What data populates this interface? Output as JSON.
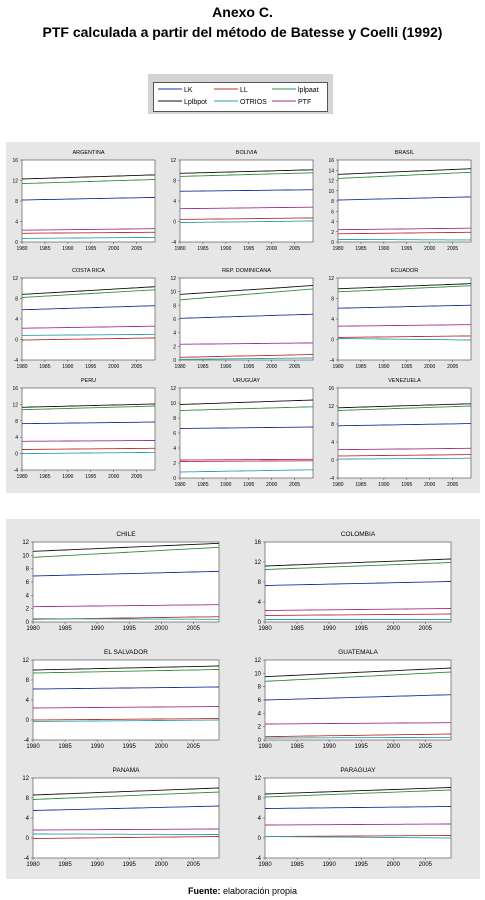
{
  "header": {
    "line1": "Anexo C.",
    "line2": "PTF calculada a partir del método de Batesse y Coelli (1992)"
  },
  "legend": {
    "items": [
      {
        "label": "LK",
        "color": "#1d2f9c"
      },
      {
        "label": "LL",
        "color": "#c23028"
      },
      {
        "label": "lplpaat",
        "color": "#2f8f3a"
      },
      {
        "label": "Lplbpot",
        "color": "#111111"
      },
      {
        "label": "OTRIOS",
        "color": "#2aa3a8"
      },
      {
        "label": "PTF",
        "color": "#a0328e"
      }
    ]
  },
  "source": {
    "label": "Fuente:",
    "text": "elaboración propia"
  },
  "chart_data": [
    {
      "type": "line",
      "title": "ARGENTINA",
      "ylim": [
        0,
        16
      ],
      "yticks": [
        0,
        4,
        8,
        12,
        16
      ],
      "x": [
        1980,
        2009
      ],
      "xticks": [
        "1980",
        "1985",
        "1990",
        "1995",
        "2000",
        "2005"
      ],
      "series": [
        {
          "color": "#111111",
          "values": [
            12.3,
            13.1
          ]
        },
        {
          "color": "#2f8f3a",
          "values": [
            11.4,
            12.2
          ]
        },
        {
          "color": "#1d2f9c",
          "values": [
            8.2,
            8.7
          ]
        },
        {
          "color": "#a0328e",
          "values": [
            2.3,
            2.6
          ]
        },
        {
          "color": "#c23028",
          "values": [
            1.7,
            1.9
          ]
        },
        {
          "color": "#2aa3a8",
          "values": [
            0.7,
            0.9
          ]
        }
      ]
    },
    {
      "type": "line",
      "title": "BOLIVIA",
      "ylim": [
        -4,
        12
      ],
      "yticks": [
        -4,
        0,
        4,
        8,
        12
      ],
      "x": [
        1980,
        2009
      ],
      "xticks": [
        "1980",
        "1985",
        "1990",
        "1995",
        "2000",
        "2005"
      ],
      "series": [
        {
          "color": "#111111",
          "values": [
            9.4,
            10.1
          ]
        },
        {
          "color": "#2f8f3a",
          "values": [
            8.8,
            9.5
          ]
        },
        {
          "color": "#1d2f9c",
          "values": [
            5.9,
            6.2
          ]
        },
        {
          "color": "#a0328e",
          "values": [
            2.5,
            2.8
          ]
        },
        {
          "color": "#c23028",
          "values": [
            0.4,
            0.7
          ]
        },
        {
          "color": "#2aa3a8",
          "values": [
            -0.2,
            0.1
          ]
        }
      ]
    },
    {
      "type": "line",
      "title": "BRASIL",
      "ylim": [
        0,
        16
      ],
      "yticks": [
        0,
        2,
        4,
        6,
        8,
        10,
        12,
        14,
        16
      ],
      "x": [
        1980,
        2009
      ],
      "xticks": [
        "1980",
        "1985",
        "1990",
        "1995",
        "2000",
        "2005"
      ],
      "series": [
        {
          "color": "#111111",
          "values": [
            13.2,
            14.3
          ]
        },
        {
          "color": "#2f8f3a",
          "values": [
            12.4,
            13.6
          ]
        },
        {
          "color": "#1d2f9c",
          "values": [
            8.2,
            8.8
          ]
        },
        {
          "color": "#a0328e",
          "values": [
            2.4,
            2.7
          ]
        },
        {
          "color": "#c23028",
          "values": [
            1.6,
            1.9
          ]
        },
        {
          "color": "#2aa3a8",
          "values": [
            0.5,
            0.4
          ]
        }
      ]
    },
    {
      "type": "line",
      "title": "COSTA RICA",
      "ylim": [
        -4,
        12
      ],
      "yticks": [
        -4,
        0,
        4,
        8,
        12
      ],
      "x": [
        1980,
        2009
      ],
      "xticks": [
        "1980",
        "1985",
        "1990",
        "1995",
        "2000",
        "2005"
      ],
      "series": [
        {
          "color": "#111111",
          "values": [
            8.8,
            10.3
          ]
        },
        {
          "color": "#2f8f3a",
          "values": [
            8.2,
            9.7
          ]
        },
        {
          "color": "#1d2f9c",
          "values": [
            5.8,
            6.6
          ]
        },
        {
          "color": "#a0328e",
          "values": [
            2.2,
            2.6
          ]
        },
        {
          "color": "#2aa3a8",
          "values": [
            0.8,
            1.0
          ]
        },
        {
          "color": "#c23028",
          "values": [
            -0.1,
            0.3
          ]
        }
      ]
    },
    {
      "type": "line",
      "title": "REP. DOMINICANA",
      "ylim": [
        0,
        12
      ],
      "yticks": [
        0,
        2,
        4,
        6,
        8,
        10,
        12
      ],
      "x": [
        1980,
        2009
      ],
      "xticks": [
        "1980",
        "1985",
        "1990",
        "1995",
        "2000",
        "2005"
      ],
      "series": [
        {
          "color": "#111111",
          "values": [
            9.6,
            10.9
          ]
        },
        {
          "color": "#2f8f3a",
          "values": [
            8.8,
            10.4
          ]
        },
        {
          "color": "#1d2f9c",
          "values": [
            6.1,
            6.7
          ]
        },
        {
          "color": "#a0328e",
          "values": [
            2.3,
            2.5
          ]
        },
        {
          "color": "#c23028",
          "values": [
            0.4,
            0.8
          ]
        },
        {
          "color": "#2aa3a8",
          "values": [
            0.1,
            0.3
          ]
        }
      ]
    },
    {
      "type": "line",
      "title": "ECUADOR",
      "ylim": [
        -4,
        12
      ],
      "yticks": [
        -4,
        0,
        4,
        8,
        12
      ],
      "x": [
        1980,
        2009
      ],
      "xticks": [
        "1980",
        "1985",
        "1990",
        "1995",
        "2000",
        "2005"
      ],
      "series": [
        {
          "color": "#111111",
          "values": [
            9.9,
            10.9
          ]
        },
        {
          "color": "#2f8f3a",
          "values": [
            9.3,
            10.5
          ]
        },
        {
          "color": "#1d2f9c",
          "values": [
            6.1,
            6.7
          ]
        },
        {
          "color": "#a0328e",
          "values": [
            2.6,
            2.9
          ]
        },
        {
          "color": "#c23028",
          "values": [
            0.4,
            0.7
          ]
        },
        {
          "color": "#2aa3a8",
          "values": [
            0.2,
            -0.1
          ]
        }
      ]
    },
    {
      "type": "line",
      "title": "PERU",
      "ylim": [
        -4,
        16
      ],
      "yticks": [
        -4,
        0,
        4,
        8,
        12,
        16
      ],
      "x": [
        1980,
        2009
      ],
      "xticks": [
        "1980",
        "1985",
        "1990",
        "1995",
        "2000",
        "2005"
      ],
      "series": [
        {
          "color": "#111111",
          "values": [
            11.3,
            12.1
          ]
        },
        {
          "color": "#2f8f3a",
          "values": [
            10.7,
            11.6
          ]
        },
        {
          "color": "#1d2f9c",
          "values": [
            7.3,
            7.7
          ]
        },
        {
          "color": "#a0328e",
          "values": [
            3.0,
            3.2
          ]
        },
        {
          "color": "#c23028",
          "values": [
            1.0,
            1.3
          ]
        },
        {
          "color": "#2aa3a8",
          "values": [
            0.0,
            0.3
          ]
        }
      ]
    },
    {
      "type": "line",
      "title": "URUGUAY",
      "ylim": [
        0,
        12
      ],
      "yticks": [
        0,
        2,
        4,
        6,
        8,
        10,
        12
      ],
      "x": [
        1980,
        2009
      ],
      "xticks": [
        "1980",
        "1985",
        "1990",
        "1995",
        "2000",
        "2005"
      ],
      "series": [
        {
          "color": "#111111",
          "values": [
            9.8,
            10.4
          ]
        },
        {
          "color": "#2f8f3a",
          "values": [
            9.0,
            9.5
          ]
        },
        {
          "color": "#1d2f9c",
          "values": [
            6.6,
            6.8
          ]
        },
        {
          "color": "#a0328e",
          "values": [
            2.4,
            2.5
          ]
        },
        {
          "color": "#c23028",
          "values": [
            2.2,
            2.3
          ]
        },
        {
          "color": "#2aa3a8",
          "values": [
            0.8,
            1.1
          ]
        }
      ]
    },
    {
      "type": "line",
      "title": "VENEZUELA",
      "ylim": [
        -4,
        16
      ],
      "yticks": [
        -4,
        0,
        4,
        8,
        12,
        16
      ],
      "x": [
        1980,
        2009
      ],
      "xticks": [
        "1980",
        "1985",
        "1990",
        "1995",
        "2000",
        "2005"
      ],
      "series": [
        {
          "color": "#111111",
          "values": [
            11.6,
            12.5
          ]
        },
        {
          "color": "#2f8f3a",
          "values": [
            11.0,
            12.0
          ]
        },
        {
          "color": "#1d2f9c",
          "values": [
            7.6,
            8.1
          ]
        },
        {
          "color": "#a0328e",
          "values": [
            2.3,
            2.6
          ]
        },
        {
          "color": "#c23028",
          "values": [
            0.9,
            1.2
          ]
        },
        {
          "color": "#2aa3a8",
          "values": [
            0.2,
            0.4
          ]
        }
      ]
    },
    {
      "type": "line",
      "title": "CHILE",
      "ylim": [
        0,
        12
      ],
      "yticks": [
        0,
        2,
        4,
        6,
        8,
        10,
        12
      ],
      "x": [
        1980,
        2009
      ],
      "xticks": [
        "1980",
        "1985",
        "1990",
        "1995",
        "2000",
        "2005"
      ],
      "series": [
        {
          "color": "#111111",
          "values": [
            10.6,
            11.8
          ]
        },
        {
          "color": "#2f8f3a",
          "values": [
            9.7,
            11.2
          ]
        },
        {
          "color": "#1d2f9c",
          "values": [
            6.9,
            7.6
          ]
        },
        {
          "color": "#a0328e",
          "values": [
            2.3,
            2.6
          ]
        },
        {
          "color": "#c23028",
          "values": [
            0.4,
            0.8
          ]
        },
        {
          "color": "#2aa3a8",
          "values": [
            0.5,
            0.4
          ]
        }
      ]
    },
    {
      "type": "line",
      "title": "COLOMBIA",
      "ylim": [
        0,
        16
      ],
      "yticks": [
        0,
        4,
        8,
        12,
        16
      ],
      "x": [
        1980,
        2009
      ],
      "xticks": [
        "1980",
        "1985",
        "1990",
        "1995",
        "2000",
        "2005"
      ],
      "series": [
        {
          "color": "#111111",
          "values": [
            11.2,
            12.6
          ]
        },
        {
          "color": "#2f8f3a",
          "values": [
            10.5,
            11.9
          ]
        },
        {
          "color": "#1d2f9c",
          "values": [
            7.3,
            8.1
          ]
        },
        {
          "color": "#a0328e",
          "values": [
            2.3,
            2.7
          ]
        },
        {
          "color": "#c23028",
          "values": [
            1.3,
            1.6
          ]
        },
        {
          "color": "#2aa3a8",
          "values": [
            0.5,
            0.5
          ]
        }
      ]
    },
    {
      "type": "line",
      "title": "EL SALVADOR",
      "ylim": [
        -4,
        12
      ],
      "yticks": [
        -4,
        0,
        4,
        8,
        12
      ],
      "x": [
        1980,
        2009
      ],
      "xticks": [
        "1980",
        "1985",
        "1990",
        "1995",
        "2000",
        "2005"
      ],
      "series": [
        {
          "color": "#111111",
          "values": [
            10.0,
            10.8
          ]
        },
        {
          "color": "#2f8f3a",
          "values": [
            9.4,
            10.1
          ]
        },
        {
          "color": "#1d2f9c",
          "values": [
            6.2,
            6.6
          ]
        },
        {
          "color": "#a0328e",
          "values": [
            2.4,
            2.7
          ]
        },
        {
          "color": "#c23028",
          "values": [
            0.0,
            0.3
          ]
        },
        {
          "color": "#2aa3a8",
          "values": [
            -0.3,
            0.0
          ]
        }
      ]
    },
    {
      "type": "line",
      "title": "GUATEMALA",
      "ylim": [
        0,
        12
      ],
      "yticks": [
        0,
        2,
        4,
        6,
        8,
        10,
        12
      ],
      "x": [
        1980,
        2009
      ],
      "xticks": [
        "1980",
        "1985",
        "1990",
        "1995",
        "2000",
        "2005"
      ],
      "series": [
        {
          "color": "#111111",
          "values": [
            9.5,
            10.8
          ]
        },
        {
          "color": "#2f8f3a",
          "values": [
            8.8,
            10.2
          ]
        },
        {
          "color": "#1d2f9c",
          "values": [
            6.0,
            6.8
          ]
        },
        {
          "color": "#a0328e",
          "values": [
            2.4,
            2.6
          ]
        },
        {
          "color": "#c23028",
          "values": [
            0.5,
            0.9
          ]
        },
        {
          "color": "#2aa3a8",
          "values": [
            0.3,
            0.4
          ]
        }
      ]
    },
    {
      "type": "line",
      "title": "PANAMA",
      "ylim": [
        -4,
        12
      ],
      "yticks": [
        -4,
        0,
        4,
        8,
        12
      ],
      "x": [
        1980,
        2009
      ],
      "xticks": [
        "1980",
        "1985",
        "1990",
        "1995",
        "2000",
        "2005"
      ],
      "series": [
        {
          "color": "#111111",
          "values": [
            8.6,
            10.0
          ]
        },
        {
          "color": "#2f8f3a",
          "values": [
            7.7,
            9.2
          ]
        },
        {
          "color": "#1d2f9c",
          "values": [
            5.5,
            6.4
          ]
        },
        {
          "color": "#a0328e",
          "values": [
            1.6,
            1.8
          ]
        },
        {
          "color": "#2aa3a8",
          "values": [
            0.8,
            0.7
          ]
        },
        {
          "color": "#c23028",
          "values": [
            -0.1,
            0.3
          ]
        }
      ]
    },
    {
      "type": "line",
      "title": "PARAGUAY",
      "ylim": [
        -4,
        12
      ],
      "yticks": [
        -4,
        0,
        4,
        8,
        12
      ],
      "x": [
        1980,
        2009
      ],
      "xticks": [
        "1980",
        "1985",
        "1990",
        "1995",
        "2000",
        "2005"
      ],
      "series": [
        {
          "color": "#111111",
          "values": [
            8.8,
            10.1
          ]
        },
        {
          "color": "#2f8f3a",
          "values": [
            8.2,
            9.6
          ]
        },
        {
          "color": "#1d2f9c",
          "values": [
            5.9,
            6.3
          ]
        },
        {
          "color": "#a0328e",
          "values": [
            2.6,
            2.8
          ]
        },
        {
          "color": "#c23028",
          "values": [
            0.3,
            0.5
          ]
        },
        {
          "color": "#2aa3a8",
          "values": [
            0.3,
            0.0
          ]
        }
      ]
    }
  ]
}
